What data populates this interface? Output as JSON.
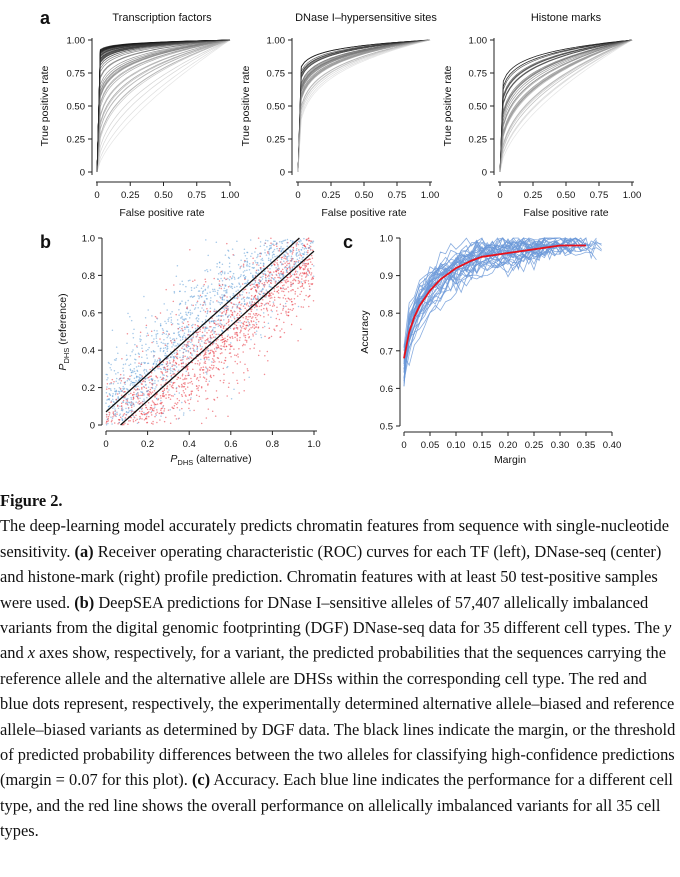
{
  "figure": {
    "panel_letters": {
      "a": "a",
      "b": "b",
      "c": "c"
    },
    "panel_a": [
      {
        "title": "Transcription factors",
        "xlabel": "False positive rate",
        "ylabel": "True positive rate",
        "xticks": [
          "0",
          "0.25",
          "0.50",
          "0.75",
          "1.00"
        ],
        "yticks": [
          "0",
          "0.25",
          "0.50",
          "0.75",
          "1.00"
        ]
      },
      {
        "title": "DNase I–hypersensitive sites",
        "xlabel": "False positive rate",
        "ylabel": "True positive rate",
        "xticks": [
          "0",
          "0.25",
          "0.50",
          "0.75",
          "1.00"
        ],
        "yticks": [
          "0",
          "0.25",
          "0.50",
          "0.75",
          "1.00"
        ]
      },
      {
        "title": "Histone marks",
        "xlabel": "False positive rate",
        "ylabel": "True positive rate",
        "xticks": [
          "0",
          "0.25",
          "0.50",
          "0.75",
          "1.00"
        ],
        "yticks": [
          "0",
          "0.25",
          "0.50",
          "0.75",
          "1.00"
        ]
      }
    ],
    "panel_b": {
      "xlabel_main": "P",
      "xlabel_sub": "DHS",
      "xlabel_rest": " (alternative)",
      "ylabel_main": "P",
      "ylabel_sub": "DHS",
      "ylabel_rest": " (reference)",
      "xticks": [
        "0",
        "0.2",
        "0.4",
        "0.6",
        "0.8",
        "1.0"
      ],
      "yticks": [
        "0",
        "0.2",
        "0.4",
        "0.6",
        "0.8",
        "1.0"
      ],
      "margin": 0.07,
      "colors": {
        "reference_biased": "#5b9bd5",
        "alternative_biased": "#e8303a"
      }
    },
    "panel_c": {
      "xlabel": "Margin",
      "ylabel": "Accuracy",
      "xticks": [
        "0",
        "0.05",
        "0.10",
        "0.15",
        "0.20",
        "0.25",
        "0.30",
        "0.35",
        "0.40"
      ],
      "yticks": [
        "0.5",
        "0.6",
        "0.7",
        "0.8",
        "0.9",
        "1.0"
      ],
      "colors": {
        "cell_type": "#6c98d8",
        "overall": "#e8101a"
      }
    }
  },
  "chart_data": [
    {
      "type": "line",
      "title": "Transcription factors",
      "xlabel": "False positive rate",
      "ylabel": "True positive rate",
      "xlim": [
        0,
        1
      ],
      "ylim": [
        0,
        1
      ],
      "series_count_approx": 60,
      "curve_shape_exponents": [
        0.02,
        0.03,
        0.04,
        0.05,
        0.06,
        0.08,
        0.1,
        0.12,
        0.15,
        0.2,
        0.3,
        0.45,
        0.7
      ]
    },
    {
      "type": "line",
      "title": "DNase I–hypersensitive sites",
      "xlabel": "False positive rate",
      "ylabel": "True positive rate",
      "xlim": [
        0,
        1
      ],
      "ylim": [
        0,
        1
      ],
      "series_count_approx": 40,
      "curve_shape_exponents": [
        0.06,
        0.08,
        0.1,
        0.12,
        0.14,
        0.16,
        0.2,
        0.25
      ]
    },
    {
      "type": "line",
      "title": "Histone marks",
      "xlabel": "False positive rate",
      "ylabel": "True positive rate",
      "xlim": [
        0,
        1
      ],
      "ylim": [
        0,
        1
      ],
      "series_count_approx": 40,
      "curve_shape_exponents": [
        0.1,
        0.14,
        0.18,
        0.22,
        0.28,
        0.35,
        0.45,
        0.6
      ]
    },
    {
      "type": "scatter",
      "xlabel": "PDHS (alternative)",
      "ylabel": "PDHS (reference)",
      "xlim": [
        0,
        1
      ],
      "ylim": [
        0,
        1
      ],
      "margin": 0.07,
      "variants_total": 57407
    },
    {
      "type": "line",
      "xlabel": "Margin",
      "ylabel": "Accuracy",
      "xlim": [
        0,
        0.4
      ],
      "ylim": [
        0.5,
        1.0
      ],
      "series": [
        {
          "name": "overall",
          "x": [
            0,
            0.01,
            0.02,
            0.03,
            0.05,
            0.07,
            0.1,
            0.13,
            0.15,
            0.2,
            0.25,
            0.3,
            0.35
          ],
          "values": [
            0.68,
            0.75,
            0.79,
            0.82,
            0.86,
            0.89,
            0.92,
            0.94,
            0.95,
            0.96,
            0.97,
            0.98,
            0.98
          ]
        }
      ],
      "cell_type_lines": 35
    }
  ],
  "caption": {
    "title": "Figure 2.",
    "t1": "The deep-learning model accurately predicts chromatin features from sequence with single-nucleotide sensitivity. ",
    "a": "(a)",
    "t2": " Receiver operating characteristic (ROC) curves for each TF (left), DNase-seq (center) and histone-mark (right) profile prediction. Chromatin features with at least 50 test-positive samples were used. ",
    "b": "(b)",
    "t3": " DeepSEA predictions for DNase I–sensitive alleles of 57,407 allelically imbalanced variants from the digital genomic footprinting (DGF) DNase-seq data for 35 different cell types. The ",
    "y": "y",
    "t4": " and ",
    "x": "x",
    "t5": " axes show, respectively, for a variant, the predicted probabilities that the sequences carrying the reference allele and the alternative allele are DHSs within the corresponding cell type. The red and blue dots represent, respectively, the experimentally determined alternative allele–biased and reference allele–biased variants as determined by DGF data. The black lines indicate the margin, or the threshold of predicted probability differences between the two alleles for classifying high-confidence predictions (margin = 0.07 for this plot). ",
    "c": "(c)",
    "t6": " Accuracy. Each blue line indicates the performance for a different cell type, and the red line shows the overall performance on allelically imbalanced variants for all 35 cell types."
  }
}
